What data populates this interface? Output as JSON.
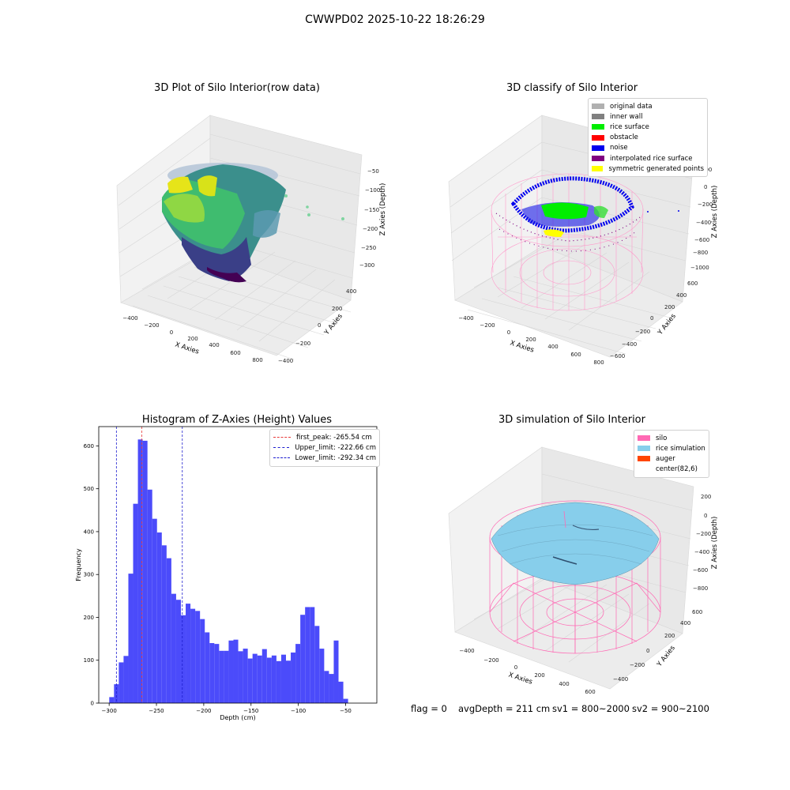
{
  "figure_title": "CWWPD02 2025-10-22 18:26:29",
  "colors": {
    "hist_bar": "#4b4bfa",
    "first_peak": "#e83a3a",
    "limit_line": "#1d1dcf",
    "pane_bg": "#f2f2f2",
    "grid": "#d0d0d0",
    "silo_pink": "#ff69b4",
    "rice_blue": "#87ceeb",
    "auger": "#ff4500"
  },
  "panels": {
    "raw": {
      "title": "3D Plot of Silo Interior(row data)",
      "xlabel": "X Axies",
      "ylabel": "Y Axies",
      "zlabel": "Z Axies (Depth)",
      "xticks": [
        "−400",
        "−200",
        "0",
        "200",
        "400",
        "600",
        "800"
      ],
      "yticks": [
        "−400",
        "−200",
        "0",
        "200",
        "400"
      ],
      "zticks": [
        "−50",
        "−100",
        "−150",
        "−200",
        "−250",
        "−300"
      ]
    },
    "classify": {
      "title": "3D classify of Silo Interior",
      "xlabel": "X Axies",
      "ylabel": "Y Axies",
      "zlabel": "Z Axies (Depth)",
      "xticks": [
        "−400",
        "−200",
        "0",
        "200",
        "400",
        "600",
        "800"
      ],
      "yticks": [
        "−600",
        "−400",
        "−200",
        "0",
        "200",
        "400",
        "600"
      ],
      "zticks": [
        "200",
        "0",
        "−200",
        "−400",
        "−600",
        "−800",
        "−1000"
      ],
      "legend": [
        {
          "label": "original data",
          "color": "#b0b0b0"
        },
        {
          "label": "inner wall",
          "color": "#808080"
        },
        {
          "label": "rice surface",
          "color": "#00ee00"
        },
        {
          "label": "obstacle",
          "color": "#ff0000"
        },
        {
          "label": "noise",
          "color": "#0000ee"
        },
        {
          "label": "interpolated rice surface",
          "color": "#800080"
        },
        {
          "label": "symmetric generated points",
          "color": "#ffff00"
        }
      ]
    },
    "simulation": {
      "title": "3D simulation of Silo Interior",
      "xlabel": "X Axies",
      "ylabel": "Y Axies",
      "zlabel": "Z Axies (Depth)",
      "xticks": [
        "−400",
        "−200",
        "0",
        "200",
        "400",
        "600"
      ],
      "yticks": [
        "−400",
        "−200",
        "0",
        "200",
        "400",
        "600"
      ],
      "zticks": [
        "200",
        "0",
        "−200",
        "−400",
        "−600",
        "−800"
      ],
      "legend": [
        {
          "label": "silo",
          "color": "#ff69b4"
        },
        {
          "label": "rice simulation",
          "color": "#87ceeb"
        },
        {
          "label": "auger",
          "color": "#ff4500"
        },
        {
          "label": "center(82,6)",
          "color": ""
        }
      ]
    }
  },
  "status": {
    "flag": "flag = 0",
    "avg_depth": "avgDepth = 211 cm",
    "sv1": "sv1 = 800~2000",
    "sv2": "sv2 = 900~2100"
  },
  "chart_data": {
    "type": "bar",
    "title": "Histogram of Z-Axies (Height) Values",
    "xlabel": "Depth (cm)",
    "ylabel": "Frequency",
    "xlim": [
      -311,
      -17
    ],
    "ylim": [
      0,
      645
    ],
    "xticks": [
      -300,
      -250,
      -200,
      -150,
      -100,
      -50
    ],
    "yticks": [
      0,
      100,
      200,
      300,
      400,
      500,
      600
    ],
    "bin_start": -299.9,
    "bin_width": 5.05,
    "values": [
      14,
      44,
      95,
      110,
      302,
      465,
      615,
      612,
      498,
      430,
      398,
      368,
      338,
      255,
      241,
      205,
      232,
      220,
      215,
      196,
      165,
      140,
      138,
      122,
      122,
      146,
      148,
      121,
      127,
      104,
      115,
      111,
      126,
      106,
      111,
      98,
      113,
      99,
      118,
      138,
      206,
      224,
      224,
      180,
      127,
      75,
      68,
      146,
      50,
      10
    ],
    "vlines": [
      {
        "label": "first_peak: -265.54 cm",
        "x": -265.54,
        "color": "#e83a3a"
      },
      {
        "label": "Upper_limit: -222.66 cm",
        "x": -222.66,
        "color": "#1d1dcf"
      },
      {
        "label": "Lower_limit: -292.34 cm",
        "x": -292.34,
        "color": "#1d1dcf"
      }
    ]
  }
}
